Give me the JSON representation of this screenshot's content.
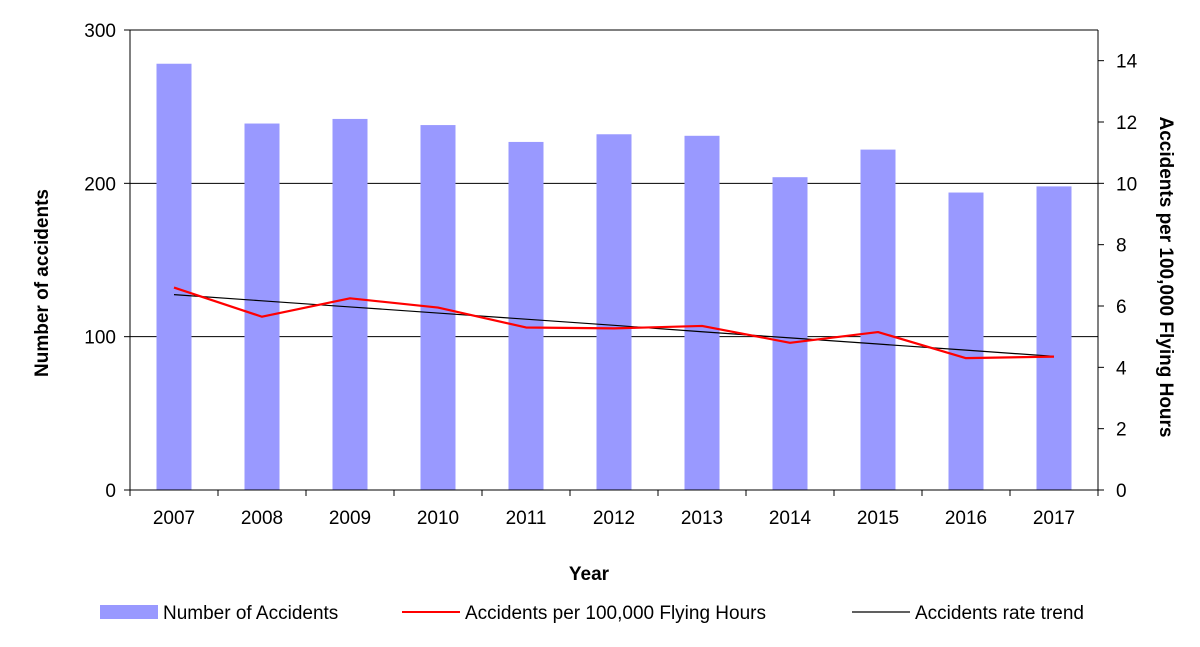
{
  "chart_data": {
    "type": "bar",
    "categories": [
      "2007",
      "2008",
      "2009",
      "2010",
      "2011",
      "2012",
      "2013",
      "2014",
      "2015",
      "2016",
      "2017"
    ],
    "series": [
      {
        "name": "Number of Accidents",
        "type": "bar",
        "axis": "left",
        "color": "#9999ff",
        "values": [
          278,
          239,
          242,
          238,
          227,
          232,
          231,
          204,
          222,
          194,
          198
        ]
      },
      {
        "name": "Accidents per 100,000 Flying Hours",
        "type": "line",
        "axis": "right",
        "color": "#ff0000",
        "values": [
          6.6,
          5.65,
          6.25,
          5.95,
          5.3,
          5.27,
          5.35,
          4.8,
          5.15,
          4.3,
          4.35
        ]
      },
      {
        "name": "Accidents rate trend",
        "type": "line",
        "axis": "right",
        "color": "#000000",
        "values": [
          6.37,
          6.17,
          5.97,
          5.77,
          5.57,
          5.37,
          5.16,
          4.96,
          4.76,
          4.56,
          4.36
        ]
      }
    ],
    "xlabel": "Year",
    "ylabel": "Number of accidents",
    "y2label": "Accidents per 100,000 Flying Hours",
    "ylim": [
      0,
      300
    ],
    "yticks": [
      0,
      100,
      200,
      300
    ],
    "y2lim": [
      0,
      15
    ],
    "y2ticks": [
      0,
      2,
      4,
      6,
      8,
      10,
      12,
      14
    ],
    "grid": "horizontal major lines on left axis",
    "legend": "bottom"
  }
}
